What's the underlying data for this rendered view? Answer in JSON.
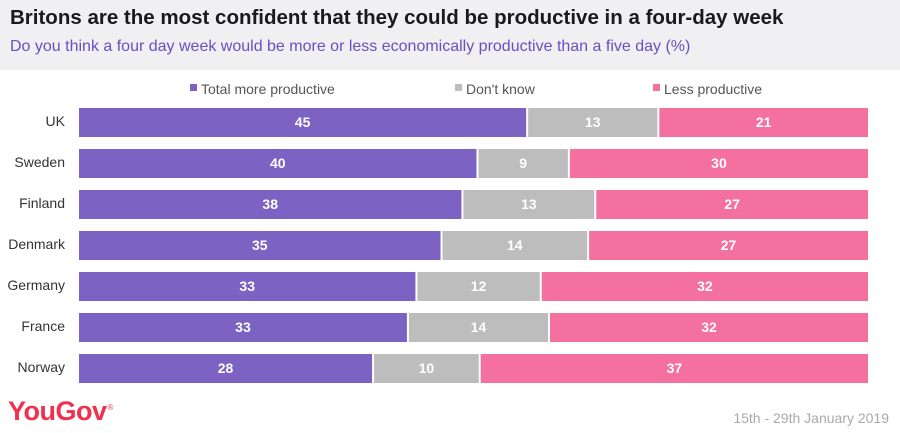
{
  "chart_data": {
    "type": "bar",
    "orientation": "horizontal-stacked",
    "title": "Britons are the most confident that they could be productive in a four-day week",
    "subtitle": "Do you think a four day week would be more or less economically productive than a five day (%)",
    "categories": [
      "UK",
      "Sweden",
      "Finland",
      "Denmark",
      "Germany",
      "France",
      "Norway"
    ],
    "series": [
      {
        "name": "Total more productive",
        "color": "#7b62c3",
        "values": [
          45,
          40,
          38,
          35,
          33,
          33,
          28
        ]
      },
      {
        "name": "Don't know",
        "color": "#bdbdbd",
        "values": [
          13,
          9,
          13,
          14,
          12,
          14,
          10
        ]
      },
      {
        "name": "Less productive",
        "color": "#f4709e",
        "values": [
          21,
          30,
          27,
          27,
          32,
          32,
          37
        ]
      }
    ],
    "legend_position": "top"
  },
  "footer": {
    "brand": "YouGov",
    "brand_mark": "®",
    "date": "15th - 29th January 2019"
  }
}
